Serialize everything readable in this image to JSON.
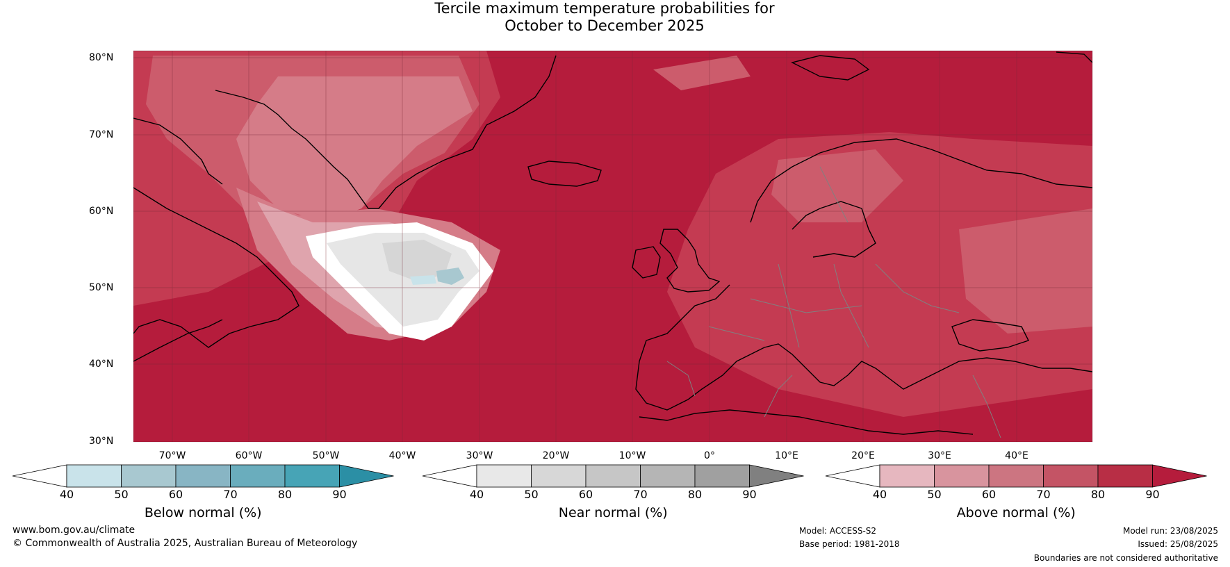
{
  "title_line1": "Tercile maximum temperature probabilities for",
  "title_line2": "October to December 2025",
  "lat_labels": [
    "80°N",
    "70°N",
    "60°N",
    "50°N",
    "40°N",
    "30°N"
  ],
  "lon_labels": [
    "70°W",
    "60°W",
    "50°W",
    "40°W",
    "30°W",
    "20°W",
    "10°W",
    "0°",
    "10°E",
    "20°E",
    "30°E",
    "40°E"
  ],
  "colorbars": [
    {
      "label": "Below normal (%)",
      "ticks": [
        "40",
        "50",
        "60",
        "70",
        "80",
        "90"
      ],
      "colors": [
        "#ffffff",
        "#c9e3ea",
        "#a8c8d0",
        "#88b5c4",
        "#6aadbd",
        "#47a4b6",
        "#2b8fa5"
      ]
    },
    {
      "label": "Near normal (%)",
      "ticks": [
        "40",
        "50",
        "60",
        "70",
        "80",
        "90"
      ],
      "colors": [
        "#ffffff",
        "#e8e8e8",
        "#d7d7d7",
        "#c6c6c6",
        "#b5b5b5",
        "#a0a0a0",
        "#808080"
      ]
    },
    {
      "label": "Above normal (%)",
      "ticks": [
        "40",
        "50",
        "60",
        "70",
        "80",
        "90"
      ],
      "colors": [
        "#ffffff",
        "#e6b7bf",
        "#d8949e",
        "#cc7581",
        "#c45465",
        "#b82e45",
        "#b51c3c"
      ]
    }
  ],
  "footer": {
    "website": "www.bom.gov.au/climate",
    "copyright": "© Commonwealth of Australia 2025, Australian Bureau of Meteorology",
    "model": "Model: ACCESS-S2",
    "base_period": "Base period: 1981-2018",
    "model_run": "Model run: 23/08/2025",
    "issued": "Issued: 25/08/2025",
    "disclaimer": "Boundaries are not considered authoritative"
  },
  "colors": {
    "above_90": "#b51c3c",
    "above_80": "#c43b52",
    "above_70": "#cc5c6c",
    "above_60": "#d57c88",
    "above_50": "#dfa4ad",
    "near_50": "#e6e6e6",
    "below_60": "#a8c8d0"
  }
}
